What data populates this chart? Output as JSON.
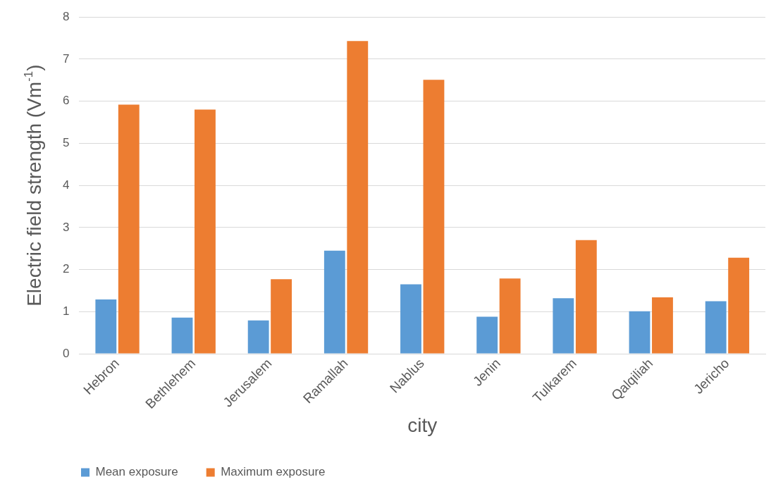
{
  "chart_data": {
    "type": "bar",
    "xlabel": "city",
    "ylabel": "Electric field strength (Vm$^{-1}$)",
    "categories": [
      "Hebron",
      "Bethlehem",
      "Jerusalem",
      "Ramallah",
      "Nablus",
      "Jenin",
      "Tulkarem",
      "Qalqiliah",
      "Jericho"
    ],
    "series": [
      {
        "name": "Mean exposure",
        "color": "#5b9bd5",
        "values": [
          1.29,
          0.86,
          0.79,
          2.45,
          1.65,
          0.88,
          1.32,
          1.01,
          1.25
        ]
      },
      {
        "name": "Maximum exposure",
        "color": "#ed7d31",
        "values": [
          5.92,
          5.8,
          1.77,
          7.43,
          6.51,
          1.79,
          2.7,
          1.34,
          2.28
        ]
      }
    ],
    "ylim": [
      0,
      8
    ],
    "yticks": [
      0,
      1,
      2,
      3,
      4,
      5,
      6,
      7,
      8
    ],
    "grid": "y",
    "legend": "bottom left"
  }
}
